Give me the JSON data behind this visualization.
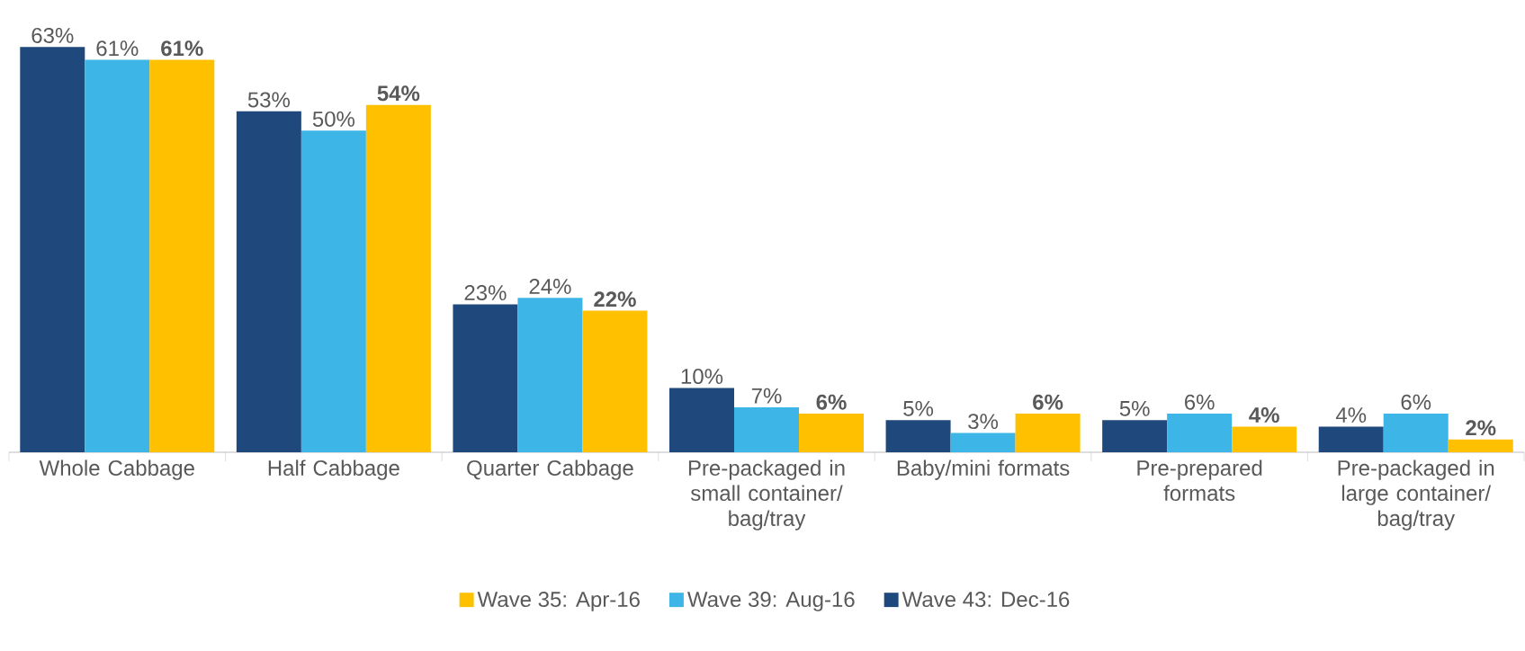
{
  "chart_data": {
    "type": "bar",
    "categories": [
      "Whole Cabbage",
      "Half Cabbage",
      "Quarter Cabbage",
      "Pre-packaged in small container/ bag/tray",
      "Baby/mini formats",
      "Pre-prepared formats",
      "Pre-packaged in large container/ bag/tray"
    ],
    "series": [
      {
        "name": "Wave 43: Dec-16",
        "color": "#1f497d",
        "values": [
          63,
          53,
          23,
          10,
          5,
          5,
          4
        ],
        "value_labels": [
          "63%",
          "53%",
          "23%",
          "10%",
          "5%",
          "5%",
          "4%"
        ]
      },
      {
        "name": "Wave 39: Aug-16",
        "color": "#3db5e6",
        "values": [
          61,
          50,
          24,
          7,
          3,
          6,
          6
        ],
        "value_labels": [
          "61%",
          "50%",
          "24%",
          "7%",
          "3%",
          "6%",
          "6%"
        ]
      },
      {
        "name": "Wave 35: Apr-16",
        "color": "#ffc000",
        "values": [
          61,
          54,
          22,
          6,
          6,
          4,
          2
        ],
        "value_labels": [
          "61%",
          "54%",
          "22%",
          "6%",
          "6%",
          "4%",
          "2%"
        ]
      }
    ],
    "legend": "bottom"
  }
}
